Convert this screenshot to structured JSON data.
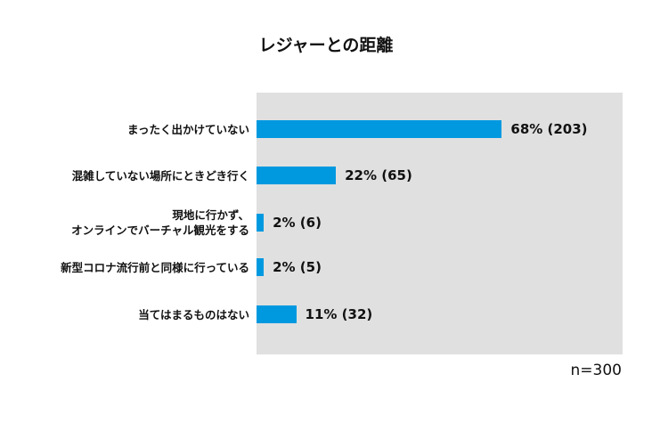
{
  "chart_data": {
    "type": "bar",
    "orientation": "horizontal",
    "title": "レジャーとの距離",
    "categories": [
      [
        "まったく出かけていない"
      ],
      [
        "混雑していない場所にときどき行く"
      ],
      [
        "現地に行かず、",
        "オンラインでバーチャル観光をする"
      ],
      [
        "新型コロナ流行前と同様に行っている"
      ],
      [
        "当てはまるものはない"
      ]
    ],
    "values": [
      68,
      22,
      2,
      2,
      11
    ],
    "value_labels": [
      "68% (203)",
      "22% (65)",
      "2% (6)",
      "2% (5)",
      "11% (32)"
    ],
    "unit": "%",
    "xlim": [
      0,
      100
    ],
    "grid": false,
    "bar_color": "#0099e0",
    "note": "n=300"
  }
}
